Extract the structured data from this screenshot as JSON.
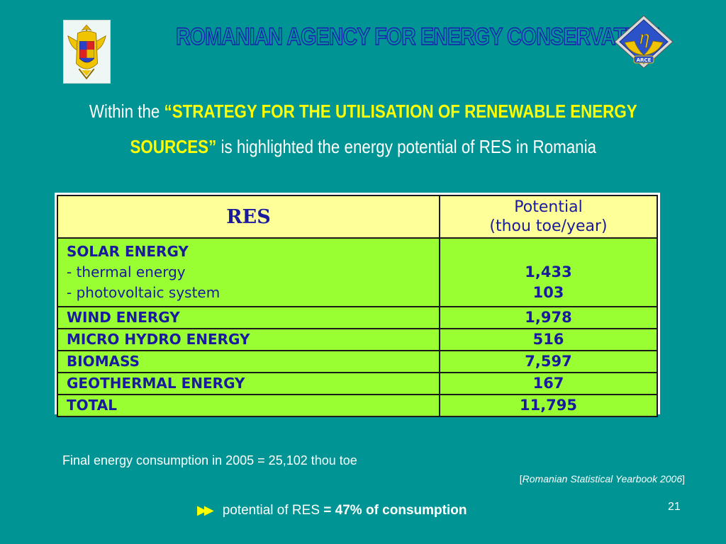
{
  "header": {
    "title": "ROMANIAN AGENCY FOR ENERGY CONSERVATION",
    "left_emblem": "romanian-coat-of-arms",
    "right_logo": {
      "symbol": "η",
      "text": "ARCE"
    }
  },
  "subtitle": {
    "line1_prefix": "Within the ",
    "line1_highlight": "“STRATEGY FOR THE UTILISATION OF RENEWABLE ENERGY",
    "line2_highlight": "SOURCES”",
    "line2_suffix": " is highlighted the energy potential of RES in Romania"
  },
  "table": {
    "headers": {
      "res": "RES",
      "potential_line1": "Potential",
      "potential_line2": "(thou toe/year)"
    },
    "solar": {
      "name": "SOLAR ENERGY",
      "thermal_label": "- thermal energy",
      "thermal_value": "1,433",
      "pv_label": "- photovoltaic system",
      "pv_value": "103"
    },
    "rows": [
      {
        "name": "WIND ENERGY",
        "value": "1,978"
      },
      {
        "name": "MICRO HYDRO ENERGY",
        "value": "516"
      },
      {
        "name": "BIOMASS",
        "value": "7,597"
      },
      {
        "name": "GEOTHERMAL ENERGY",
        "value": "167"
      },
      {
        "name": "TOTAL",
        "value": "11,795"
      }
    ]
  },
  "notes": {
    "consumption": "Final energy consumption in 2005 = 25,102 thou toe",
    "source_open": "[",
    "source": "Romanian Statistical Yearbook 2006",
    "source_close": "]",
    "conclusion_prefix": "potential of RES ",
    "conclusion_bold": "= 47% of consumption"
  },
  "slide_number": "21",
  "colors": {
    "background": "#009594",
    "title_outline": "#1b1bb0",
    "highlight": "#ffff00",
    "table_header": "#ffff99",
    "table_body": "#99ff33",
    "table_text": "#1a1a9e"
  }
}
